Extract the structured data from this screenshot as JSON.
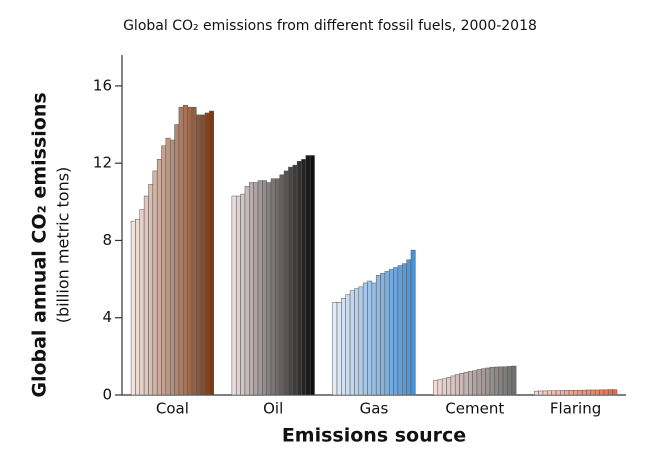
{
  "chart_data": {
    "type": "grouped-bar",
    "title": "Global CO₂ emissions from different fossil fuels, 2000-2018",
    "y_label": "Global annual CO₂ emissions",
    "y_label_sub": "(billion metric tons)",
    "x_label": "Emissions source",
    "categories": [
      "Coal",
      "Oil",
      "Gas",
      "Cement",
      "Flaring"
    ],
    "values": [
      [
        9.0,
        9.1,
        9.6,
        10.3,
        10.9,
        11.6,
        12.2,
        12.9,
        13.3,
        13.2,
        14.0,
        14.9,
        15.0,
        14.9,
        14.9,
        14.5,
        14.5,
        14.6,
        14.7
      ],
      [
        10.3,
        10.3,
        10.4,
        10.8,
        11.0,
        11.0,
        11.1,
        11.1,
        11.0,
        11.2,
        11.2,
        11.4,
        11.6,
        11.8,
        11.9,
        12.1,
        12.2,
        12.4,
        12.4
      ],
      [
        4.8,
        4.8,
        5.0,
        5.2,
        5.4,
        5.5,
        5.6,
        5.8,
        5.9,
        5.8,
        6.2,
        6.3,
        6.4,
        6.5,
        6.6,
        6.7,
        6.8,
        7.0,
        7.5
      ],
      [
        0.75,
        0.79,
        0.84,
        0.91,
        0.99,
        1.06,
        1.12,
        1.18,
        1.22,
        1.26,
        1.32,
        1.36,
        1.4,
        1.44,
        1.45,
        1.46,
        1.46,
        1.48,
        1.5
      ],
      [
        0.2,
        0.21,
        0.21,
        0.22,
        0.22,
        0.23,
        0.23,
        0.24,
        0.24,
        0.24,
        0.25,
        0.25,
        0.26,
        0.26,
        0.26,
        0.27,
        0.27,
        0.28,
        0.28
      ]
    ],
    "colors": [
      [
        "#f4e4de",
        "#7a3a14"
      ],
      [
        "#eadcdc",
        "#0e0e0e"
      ],
      [
        "#e4ecf6",
        "#4a92d4"
      ],
      [
        "#f6dcd8",
        "#707070"
      ],
      [
        "#f7d6d2",
        "#e66a44"
      ]
    ],
    "ylim": [
      0,
      17.6
    ],
    "yticks": [
      0,
      4,
      8,
      12,
      16
    ]
  }
}
